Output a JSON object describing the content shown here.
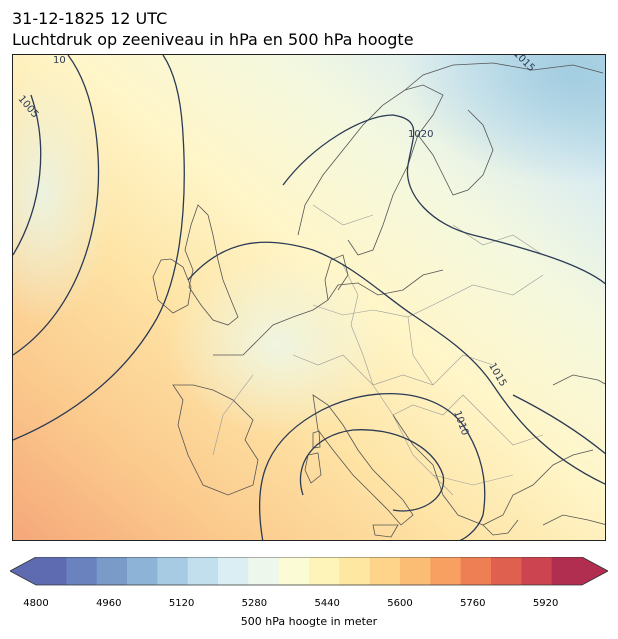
{
  "title": {
    "line1": "31-12-1825 12 UTC",
    "line2": "Luchtdruk op zeeniveau in hPa en 500 hPa hoogte"
  },
  "map": {
    "isobar_labels": [
      "1005",
      "1020",
      "1015",
      "1015",
      "1010",
      "10"
    ],
    "isobar_color": "#2b3a55",
    "coastline_color": "#555555",
    "border_color": "#9a9a9a"
  },
  "colorbar": {
    "label": "500 hPa hoogte in meter",
    "range": [
      4800,
      6000
    ],
    "ticks": [
      "4800",
      "4960",
      "5120",
      "5280",
      "5440",
      "5600",
      "5760",
      "5920"
    ],
    "colors": [
      "#5e6bb0",
      "#6a83be",
      "#7a9ac8",
      "#8db4d6",
      "#a6cbe2",
      "#c1dfec",
      "#dbeef3",
      "#eef7ec",
      "#fbfbd6",
      "#fef4b9",
      "#fee7a0",
      "#fdd48a",
      "#fbbd74",
      "#f7a061",
      "#ee7f55",
      "#e0604f",
      "#cc4450",
      "#b22e51"
    ]
  }
}
